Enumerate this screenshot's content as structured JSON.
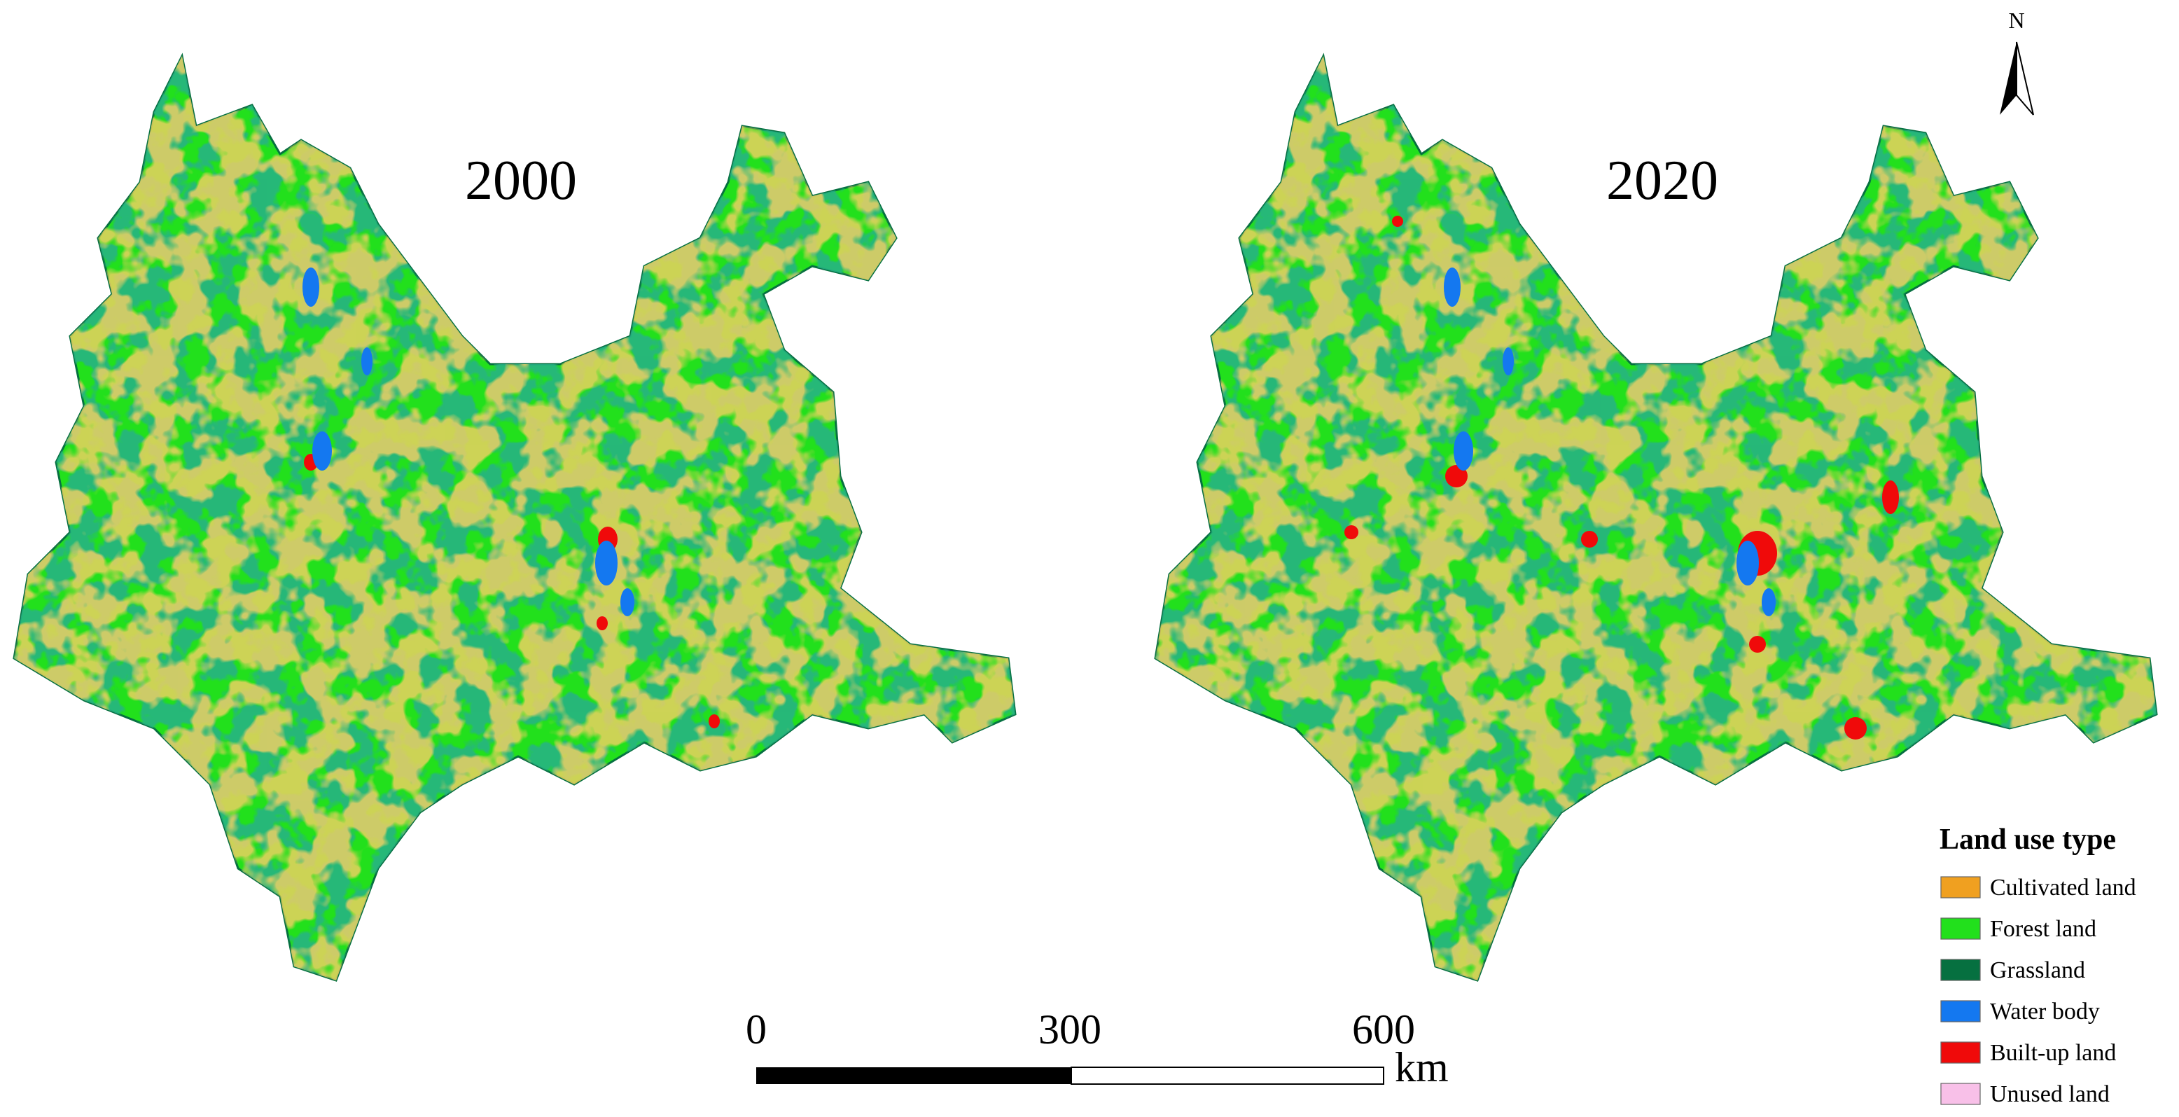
{
  "maps": [
    {
      "label": "2000"
    },
    {
      "label": "2020"
    }
  ],
  "north_arrow": "N",
  "scale_bar": {
    "ticks": [
      0,
      300,
      600
    ],
    "unit": "km"
  },
  "legend": {
    "title": "Land use type",
    "items": [
      {
        "name": "Cultivated land",
        "color": "#f0a020"
      },
      {
        "name": "Forest land",
        "color": "#22e01c"
      },
      {
        "name": "Grassland",
        "color": "#067040"
      },
      {
        "name": "Water body",
        "color": "#1478f0"
      },
      {
        "name": "Built-up land",
        "color": "#f00a0a"
      },
      {
        "name": "Unused land",
        "color": "#f8c0e8"
      }
    ]
  }
}
